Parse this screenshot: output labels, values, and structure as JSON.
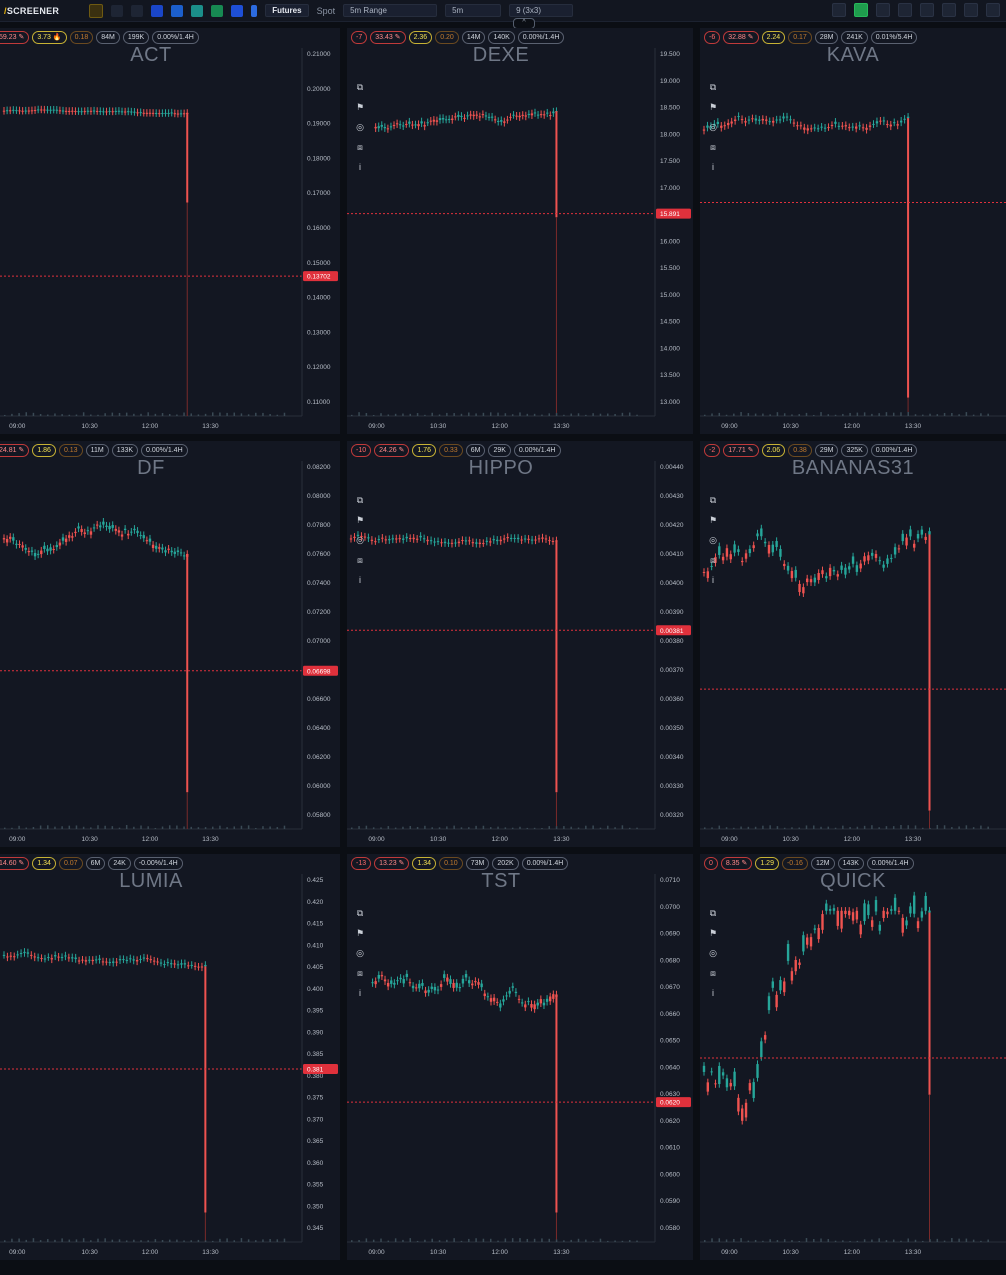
{
  "app": {
    "brand": "SCREENER",
    "market_tabs": [
      "Futures",
      "Spot"
    ],
    "range_select": "5m Range",
    "interval_select": "5m",
    "layout_select": "9 (3x3)",
    "collapse_glyph": "^"
  },
  "colors": {
    "background": "#0b0e14",
    "panel": "#131722",
    "up": "#26a69a",
    "down": "#ef5350",
    "price_line": "#e0313c"
  },
  "time_ticks": [
    "09:00",
    "10:30",
    "12:00",
    "13:30"
  ],
  "panels": [
    {
      "symbol": "ACT",
      "chips": [
        "59.23 ✎",
        "3.73 🔥",
        "0.18",
        "84M",
        "199K",
        "0.00%/1.4H"
      ],
      "price_label": "0.13702",
      "y_ticks": [
        "0.21000",
        "0.20000",
        "0.19000",
        "0.18000",
        "0.17000",
        "0.16000",
        "0.15000",
        "0.14000",
        "0.13000",
        "0.12000",
        "0.11000"
      ],
      "show_tools": false
    },
    {
      "symbol": "DEXE",
      "chips": [
        "-7",
        "33.43 ✎",
        "2.36",
        "0.20",
        "14M",
        "140K",
        "0.00%/1.4H"
      ],
      "price_label": "15.891",
      "y_ticks": [
        "19.500",
        "19.000",
        "18.500",
        "18.000",
        "17.500",
        "17.000",
        "16.500",
        "16.000",
        "15.500",
        "15.000",
        "14.500",
        "14.000",
        "13.500",
        "13.000"
      ],
      "show_tools": true
    },
    {
      "symbol": "KAVA",
      "chips": [
        "-6",
        "32.88 ✎",
        "2.24",
        "0.17",
        "28M",
        "241K",
        "0.01%/5.4H"
      ],
      "price_label": "",
      "y_ticks": [],
      "show_tools": true
    },
    {
      "symbol": "DF",
      "chips": [
        "24.81 ✎",
        "1.86",
        "0.13",
        "11M",
        "133K",
        "0.00%/1.4H"
      ],
      "price_label": "0.06698",
      "y_ticks": [
        "0.08200",
        "0.08000",
        "0.07800",
        "0.07600",
        "0.07400",
        "0.07200",
        "0.07000",
        "0.06800",
        "0.06600",
        "0.06400",
        "0.06200",
        "0.06000",
        "0.05800"
      ],
      "show_tools": false
    },
    {
      "symbol": "HIPPO",
      "chips": [
        "-10",
        "24.26 ✎",
        "1.76",
        "0.33",
        "6M",
        "29K",
        "0.00%/1.4H"
      ],
      "price_label": "0.00381",
      "y_ticks": [
        "0.00440",
        "0.00430",
        "0.00420",
        "0.00410",
        "0.00400",
        "0.00390",
        "0.00380",
        "0.00370",
        "0.00360",
        "0.00350",
        "0.00340",
        "0.00330",
        "0.00320"
      ],
      "show_tools": true
    },
    {
      "symbol": "BANANAS31",
      "chips": [
        "-2",
        "17.71 ✎",
        "2.06",
        "0.38",
        "29M",
        "325K",
        "0.00%/1.4H"
      ],
      "price_label": "",
      "y_ticks": [],
      "show_tools": true
    },
    {
      "symbol": "LUMIA",
      "chips": [
        "14.60 ✎",
        "1.34",
        "0.07",
        "6M",
        "24K",
        "-0.00%/1.4H"
      ],
      "price_label": "0.381",
      "y_ticks": [
        "0.425",
        "0.420",
        "0.415",
        "0.410",
        "0.405",
        "0.400",
        "0.395",
        "0.390",
        "0.385",
        "0.380",
        "0.375",
        "0.370",
        "0.365",
        "0.360",
        "0.355",
        "0.350",
        "0.345"
      ],
      "show_tools": false
    },
    {
      "symbol": "TST",
      "chips": [
        "-13",
        "13.23 ✎",
        "1.34",
        "0.10",
        "73M",
        "202K",
        "0.00%/1.4H"
      ],
      "price_label": "0.0620",
      "y_ticks": [
        "0.0710",
        "0.0700",
        "0.0690",
        "0.0680",
        "0.0670",
        "0.0660",
        "0.0650",
        "0.0640",
        "0.0630",
        "0.0620",
        "0.0610",
        "0.0600",
        "0.0590",
        "0.0580"
      ],
      "show_tools": true
    },
    {
      "symbol": "QUICK",
      "chips": [
        "0",
        "8.35 ✎",
        "1.29",
        "-0.16",
        "12M",
        "143K",
        "0.00%/1.4H"
      ],
      "price_label": "",
      "y_ticks": [],
      "show_tools": true
    }
  ]
}
